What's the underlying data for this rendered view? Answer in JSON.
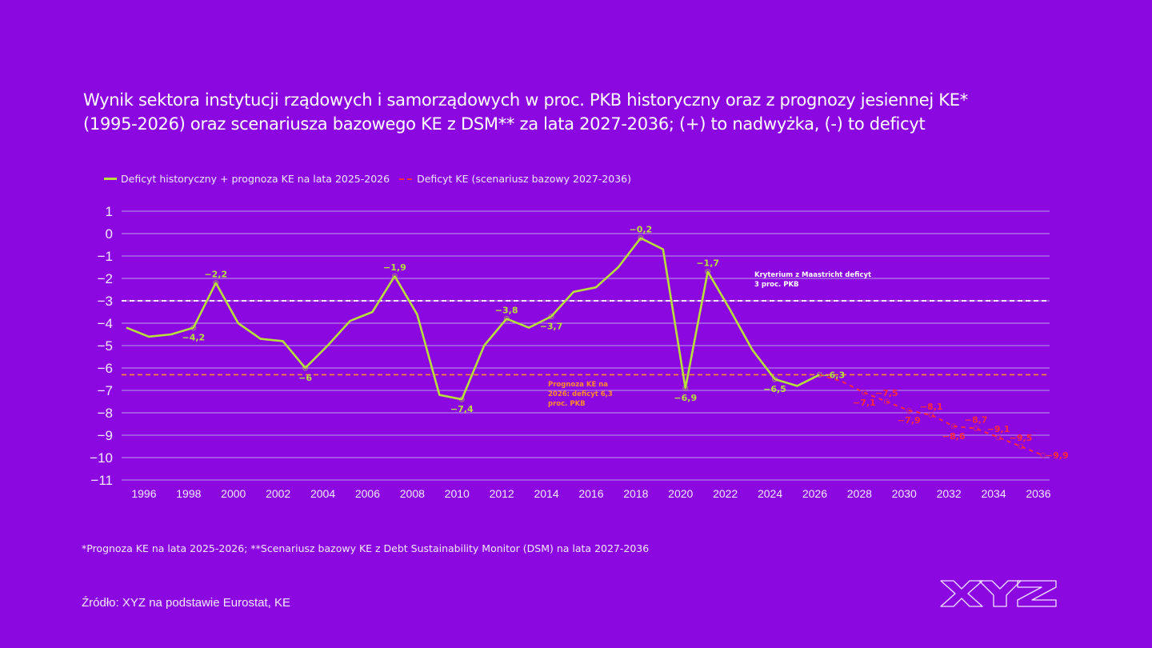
{
  "header": {
    "title_line1": "Wynik sektora instytucji rządowych i samorządowych w proc. PKB historyczny oraz z prognozy jesiennej KE*",
    "title_line2": "(1995-2026) oraz scenariusza bazowego KE z DSM** za lata 2027-2036; (+) to nadwyżka, (-) to deficyt"
  },
  "footer": {
    "footnote": "*Prognoza KE na lata 2025-2026; **Scenariusz bazowy KE z Debt Sustainability Monitor (DSM) na lata 2027-2036",
    "source": "Źródło: XYZ na podstawie Eurostat, KE",
    "logo_text": "XYZ"
  },
  "colors": {
    "background": "#8b08e0",
    "historical": "#b7e03a",
    "forecast": "#ff2b3a",
    "maastricht": "#ffffff",
    "ke2026": "#ff8a2a",
    "grid": "#b47ee8"
  },
  "chart_data": {
    "type": "line",
    "title": "Wynik sektora instytucji rządowych i samorządowych w proc. PKB",
    "xlabel": "",
    "ylabel": "",
    "ylim": [
      -11,
      1
    ],
    "xlim": [
      1995,
      2036
    ],
    "grid": true,
    "legend_position": "top-left",
    "yticks": [
      "1",
      "0",
      "−1",
      "−2",
      "−3",
      "−4",
      "−5",
      "−6",
      "−7",
      "−8",
      "−9",
      "−10",
      "−11"
    ],
    "ytick_values": [
      1,
      0,
      -1,
      -2,
      -3,
      -4,
      -5,
      -6,
      -7,
      -8,
      -9,
      -10,
      -11
    ],
    "xticks": [
      "1996",
      "1998",
      "2000",
      "2002",
      "2004",
      "2006",
      "2008",
      "2010",
      "2012",
      "2014",
      "2016",
      "2018",
      "2020",
      "2022",
      "2024",
      "2026",
      "2028",
      "2030",
      "2032",
      "2034",
      "2036"
    ],
    "xtick_values": [
      1996,
      1998,
      2000,
      2002,
      2004,
      2006,
      2008,
      2010,
      2012,
      2014,
      2016,
      2018,
      2020,
      2022,
      2024,
      2026,
      2028,
      2030,
      2032,
      2034,
      2036
    ],
    "series": [
      {
        "name": "Deficyt historyczny + prognoza KE na lata 2025-2026",
        "style": "solid",
        "x": [
          1995,
          1996,
          1997,
          1998,
          1999,
          2000,
          2001,
          2002,
          2003,
          2004,
          2005,
          2006,
          2007,
          2008,
          2009,
          2010,
          2011,
          2012,
          2013,
          2014,
          2015,
          2016,
          2017,
          2018,
          2019,
          2020,
          2021,
          2022,
          2023,
          2024,
          2025,
          2026
        ],
        "values": [
          -4.2,
          -4.6,
          -4.5,
          -4.2,
          -2.2,
          -4.0,
          -4.7,
          -4.8,
          -6.0,
          -5.0,
          -3.9,
          -3.5,
          -1.9,
          -3.6,
          -7.2,
          -7.4,
          -5.0,
          -3.8,
          -4.2,
          -3.7,
          -2.6,
          -2.4,
          -1.5,
          -0.2,
          -0.7,
          -6.9,
          -1.7,
          -3.4,
          -5.2,
          -6.5,
          -6.8,
          -6.3
        ],
        "labels": [
          {
            "x": 1998,
            "text": "−4,2",
            "pos": "below"
          },
          {
            "x": 1999,
            "text": "−2,2",
            "pos": "above"
          },
          {
            "x": 2003,
            "text": "−6",
            "pos": "below"
          },
          {
            "x": 2007,
            "text": "−1,9",
            "pos": "above"
          },
          {
            "x": 2010,
            "text": "−7,4",
            "pos": "below"
          },
          {
            "x": 2012,
            "text": "−3,8",
            "pos": "above"
          },
          {
            "x": 2014,
            "text": "−3,7",
            "pos": "below"
          },
          {
            "x": 2018,
            "text": "−0,2",
            "pos": "above"
          },
          {
            "x": 2020,
            "text": "−6,9",
            "pos": "below"
          },
          {
            "x": 2021,
            "text": "−1,7",
            "pos": "above"
          },
          {
            "x": 2024,
            "text": "−6,5",
            "pos": "below"
          },
          {
            "x": 2026,
            "text": "−6,3",
            "pos": "right"
          }
        ]
      },
      {
        "name": "Deficyt KE (scenariusz bazowy 2027-2036)",
        "style": "dashed",
        "x": [
          2027,
          2028,
          2029,
          2030,
          2031,
          2032,
          2033,
          2034,
          2035,
          2036
        ],
        "values": [
          -6.6,
          -7.1,
          -7.5,
          -7.9,
          -8.1,
          -8.6,
          -8.7,
          -9.1,
          -9.5,
          -9.9
        ],
        "labels": [
          {
            "x": 2028,
            "text": "−7,1",
            "pos": "below"
          },
          {
            "x": 2029,
            "text": "−7,5",
            "pos": "above"
          },
          {
            "x": 2030,
            "text": "−7,9",
            "pos": "below"
          },
          {
            "x": 2031,
            "text": "−8,1",
            "pos": "above"
          },
          {
            "x": 2032,
            "text": "−8,6",
            "pos": "below"
          },
          {
            "x": 2033,
            "text": "−8,7",
            "pos": "above"
          },
          {
            "x": 2034,
            "text": "−9,1",
            "pos": "above"
          },
          {
            "x": 2035,
            "text": "−9,5",
            "pos": "above"
          },
          {
            "x": 2036,
            "text": "−9,9",
            "pos": "right"
          }
        ]
      }
    ],
    "reference_lines": [
      {
        "name": "maastricht",
        "y": -3,
        "style": "dashed",
        "annotation_line1": "Kryterium z Maastricht deficyt",
        "annotation_line2": "3 proc. PKB"
      },
      {
        "name": "ke2026",
        "y": -6.3,
        "style": "dashed",
        "annotation_line1": "Prognoza KE na",
        "annotation_line2": "2026: deficyt 6,3",
        "annotation_line3": "proc. PKB"
      }
    ]
  }
}
